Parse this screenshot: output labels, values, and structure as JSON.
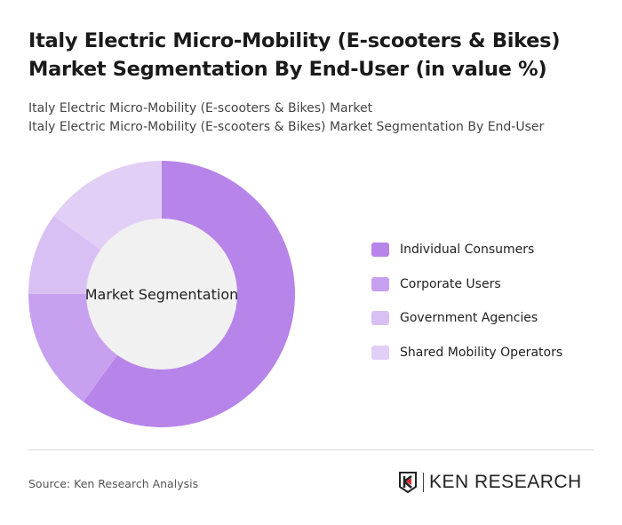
{
  "title": "Italy Electric Micro-Mobility (E-scooters & Bikes) Market Segmentation By End-User (in value %)",
  "subtitle_1": "Italy Electric Micro-Mobility (E-scooters & Bikes) Market",
  "subtitle_2": "Italy Electric Micro-Mobility (E-scooters & Bikes) Market Segmentation By End-User",
  "source": "Source: Ken Research Analysis",
  "logo_text": "KEN RESEARCH",
  "chart_data": {
    "type": "pie",
    "variant": "donut",
    "center_label": "Market Segmentation",
    "categories": [
      "Individual Consumers",
      "Corporate Users",
      "Government Agencies",
      "Shared Mobility Operators"
    ],
    "values": [
      60,
      15,
      10,
      15
    ],
    "colors": [
      "#b784ea",
      "#c7a0ef",
      "#d9c0f4",
      "#e2cff6"
    ],
    "legend_position": "right"
  }
}
